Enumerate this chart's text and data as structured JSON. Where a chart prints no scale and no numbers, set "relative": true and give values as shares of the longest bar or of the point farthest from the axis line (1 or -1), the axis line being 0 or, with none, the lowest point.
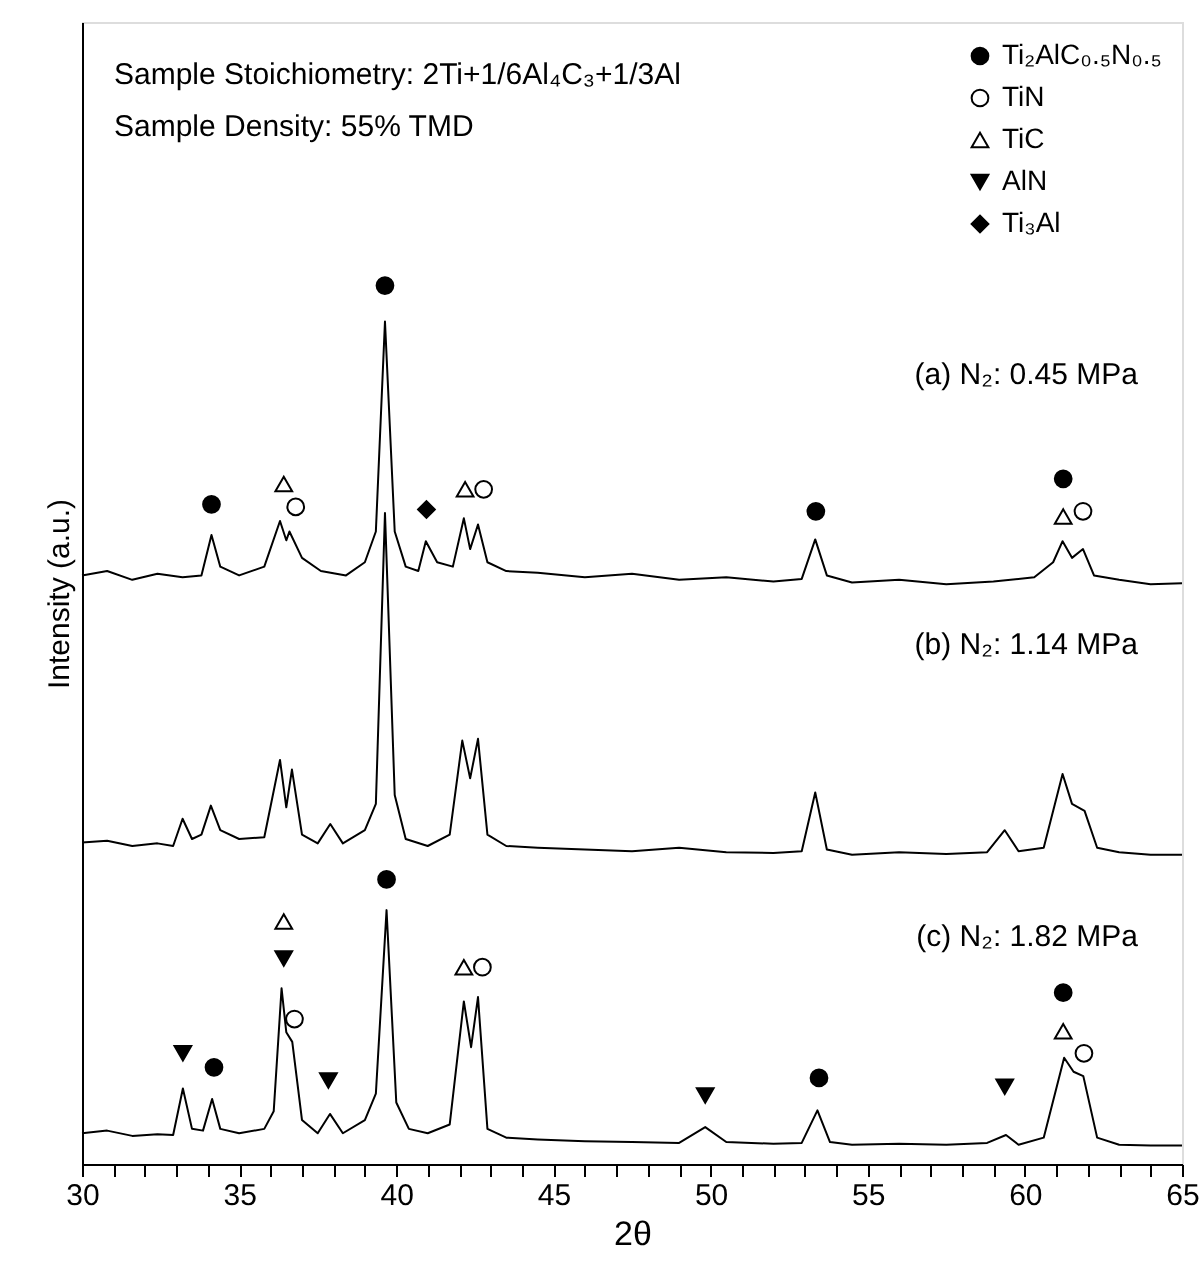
{
  "chart_data": {
    "type": "line",
    "relative": true,
    "xlabel": "2θ",
    "ylabel": "Intensity (a.u.)",
    "legend": "top right",
    "xlim": [
      30,
      65
    ],
    "xticks": [
      30,
      {
        "value": 31,
        "label": null
      },
      {
        "value": 32,
        "label": null
      },
      {
        "value": 33,
        "label": null
      },
      {
        "value": 34,
        "label": null
      },
      35,
      {
        "value": 36,
        "label": null
      },
      {
        "value": 37,
        "label": null
      },
      {
        "value": 38,
        "label": null
      },
      {
        "value": 39,
        "label": null
      },
      40,
      {
        "value": 41,
        "label": null
      },
      {
        "value": 42,
        "label": null
      },
      {
        "value": 43,
        "label": null
      },
      {
        "value": 44,
        "label": null
      },
      45,
      {
        "value": 46,
        "label": null
      },
      {
        "value": 47,
        "label": null
      },
      {
        "value": 48,
        "label": null
      },
      {
        "value": 49,
        "label": null
      },
      50,
      {
        "value": 51,
        "label": null
      },
      {
        "value": 52,
        "label": null
      },
      {
        "value": 53,
        "label": null
      },
      {
        "value": 54,
        "label": null
      },
      55,
      {
        "value": 56,
        "label": null
      },
      {
        "value": 57,
        "label": null
      },
      {
        "value": 58,
        "label": null
      },
      {
        "value": 59,
        "label": null
      },
      60,
      {
        "value": 61,
        "label": null
      },
      {
        "value": 62,
        "label": null
      },
      {
        "value": 63,
        "label": null
      },
      {
        "value": 64,
        "label": null
      },
      65
    ],
    "annotations": [
      "Sample Stoichiometry: 2Ti+1/6Al₄C₃+1/3Al",
      "Sample Density: 55% TMD",
      "(a) N₂: 0.45 MPa",
      "(b) N₂: 1.14 MPa",
      "(c) N₂: 1.82 MPa"
    ],
    "series": [
      {
        "type": "line",
        "color": "#000000",
        "x": [
          30,
          30.8,
          31.6,
          32.4,
          33.2,
          33.8,
          34.12,
          34.4,
          35.0,
          35.8,
          36.3,
          36.5,
          36.6,
          37.0,
          37.6,
          38.4,
          39.0,
          39.35,
          39.64,
          39.95,
          40.3,
          40.7,
          40.94,
          41.3,
          41.8,
          42.15,
          42.35,
          42.6,
          42.9,
          43.5,
          44.5,
          46,
          47.5,
          49,
          50.5,
          52,
          52.9,
          53.33,
          53.7,
          54.5,
          56,
          57.5,
          59,
          60.3,
          60.9,
          61.2,
          61.5,
          61.85,
          62.2,
          63,
          64,
          65
        ],
        "values": [
          0.67,
          0.675,
          0.665,
          0.672,
          0.668,
          0.67,
          0.716,
          0.68,
          0.67,
          0.68,
          0.732,
          0.71,
          0.72,
          0.69,
          0.675,
          0.67,
          0.685,
          0.72,
          0.959,
          0.72,
          0.68,
          0.675,
          0.709,
          0.685,
          0.68,
          0.735,
          0.7,
          0.728,
          0.685,
          0.675,
          0.673,
          0.668,
          0.672,
          0.665,
          0.668,
          0.663,
          0.666,
          0.711,
          0.67,
          0.662,
          0.665,
          0.66,
          0.663,
          0.668,
          0.685,
          0.709,
          0.69,
          0.7,
          0.67,
          0.665,
          0.66,
          0.661
        ]
      },
      {
        "type": "line",
        "color": "#000000",
        "x": [
          30,
          30.8,
          31.6,
          32.4,
          32.9,
          33.2,
          33.5,
          33.8,
          34.1,
          34.4,
          35.0,
          35.8,
          36.3,
          36.5,
          36.68,
          37.0,
          37.5,
          37.9,
          38.3,
          39.0,
          39.35,
          39.64,
          39.95,
          40.3,
          41.0,
          41.7,
          42.1,
          42.35,
          42.6,
          42.9,
          43.5,
          44.5,
          46,
          47.5,
          49,
          50.5,
          52,
          52.9,
          53.33,
          53.7,
          54.5,
          56,
          57.5,
          58.8,
          59.36,
          59.8,
          60.6,
          61.2,
          61.5,
          61.9,
          62.3,
          63,
          64,
          65
        ],
        "values": [
          0.366,
          0.368,
          0.362,
          0.365,
          0.362,
          0.393,
          0.37,
          0.375,
          0.408,
          0.38,
          0.37,
          0.372,
          0.46,
          0.406,
          0.449,
          0.375,
          0.365,
          0.387,
          0.365,
          0.38,
          0.41,
          0.741,
          0.42,
          0.37,
          0.362,
          0.375,
          0.482,
          0.439,
          0.484,
          0.375,
          0.362,
          0.36,
          0.358,
          0.356,
          0.36,
          0.355,
          0.354,
          0.356,
          0.423,
          0.358,
          0.352,
          0.355,
          0.353,
          0.355,
          0.38,
          0.356,
          0.36,
          0.444,
          0.41,
          0.402,
          0.36,
          0.355,
          0.352,
          0.352
        ]
      },
      {
        "type": "line",
        "color": "#000000",
        "x": [
          30,
          30.8,
          31.6,
          32.4,
          32.9,
          33.21,
          33.5,
          33.85,
          34.14,
          34.4,
          35.0,
          35.8,
          36.1,
          36.35,
          36.5,
          36.69,
          37.0,
          37.5,
          37.89,
          38.3,
          39.0,
          39.35,
          39.69,
          40.0,
          40.4,
          41.0,
          41.7,
          42.15,
          42.38,
          42.6,
          42.9,
          43.5,
          44.5,
          46,
          47.5,
          49,
          49.83,
          50.5,
          52,
          52.9,
          53.4,
          53.8,
          54.5,
          56,
          57.5,
          58.8,
          59.4,
          59.8,
          60.6,
          61.25,
          61.55,
          61.86,
          62.3,
          63,
          64,
          65
        ],
        "values": [
          0.035,
          0.038,
          0.032,
          0.034,
          0.033,
          0.086,
          0.04,
          0.038,
          0.074,
          0.04,
          0.035,
          0.04,
          0.06,
          0.2,
          0.15,
          0.139,
          0.05,
          0.035,
          0.057,
          0.035,
          0.05,
          0.08,
          0.289,
          0.07,
          0.04,
          0.035,
          0.045,
          0.185,
          0.133,
          0.19,
          0.04,
          0.03,
          0.028,
          0.026,
          0.025,
          0.024,
          0.042,
          0.025,
          0.023,
          0.024,
          0.061,
          0.025,
          0.022,
          0.023,
          0.022,
          0.024,
          0.033,
          0.022,
          0.03,
          0.121,
          0.105,
          0.1,
          0.03,
          0.022,
          0.021,
          0.021
        ]
      },
      {
        "name": "Ti₂AlC₀.₅N₀.₅",
        "type": "scatter",
        "marker": "circle",
        "color": "#000000",
        "x": [
          34.12,
          39.64,
          53.35,
          61.22,
          39.69,
          34.2,
          53.45,
          61.22
        ],
        "values": [
          0.751,
          1.0,
          0.743,
          0.78,
          0.324,
          0.11,
          0.098,
          0.195
        ]
      },
      {
        "name": "TiN",
        "type": "scatter",
        "marker": "circle",
        "color": "#ffffff",
        "x": [
          36.8,
          42.78,
          61.85,
          36.76,
          42.74,
          61.88
        ],
        "values": [
          0.748,
          0.768,
          0.743,
          0.165,
          0.224,
          0.126
        ]
      },
      {
        "name": "TiC",
        "type": "scatter",
        "marker": "triangle",
        "color": "#ffffff",
        "x": [
          36.42,
          42.19,
          61.22,
          36.42,
          42.15,
          61.22
        ],
        "values": [
          0.774,
          0.768,
          0.737,
          0.276,
          0.224,
          0.151
        ]
      },
      {
        "name": "AlN",
        "type": "scatter",
        "marker": "triangle-down",
        "color": "#000000",
        "x": [
          33.21,
          36.42,
          37.84,
          49.83,
          59.36
        ],
        "values": [
          0.126,
          0.234,
          0.095,
          0.078,
          0.088
        ]
      },
      {
        "name": "Ti₃Al",
        "type": "scatter",
        "marker": "diamond",
        "color": "#000000",
        "x": [
          40.96
        ],
        "values": [
          0.745
        ]
      }
    ]
  }
}
